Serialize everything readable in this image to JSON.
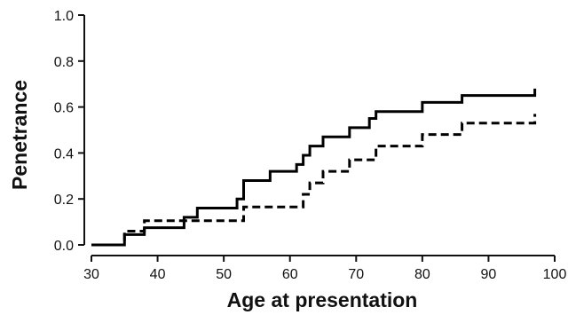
{
  "chart_data": {
    "type": "line",
    "xlabel": "Age at presentation",
    "ylabel": "Penetrance",
    "xlim": [
      30,
      100
    ],
    "ylim": [
      0.0,
      1.0
    ],
    "x_ticks": [
      "30",
      "40",
      "50",
      "60",
      "70",
      "80",
      "90",
      "100"
    ],
    "y_ticks": [
      "0.0",
      "0.2",
      "0.4",
      "0.6",
      "0.8",
      "1.0"
    ],
    "grid": false,
    "legend": "none",
    "series": [
      {
        "style": "solid",
        "color": "#000000",
        "steps": [
          [
            30,
            0.0
          ],
          [
            35,
            0.045
          ],
          [
            38,
            0.075
          ],
          [
            44,
            0.12
          ],
          [
            46,
            0.16
          ],
          [
            52,
            0.2
          ],
          [
            53,
            0.28
          ],
          [
            57,
            0.32
          ],
          [
            61,
            0.35
          ],
          [
            62,
            0.39
          ],
          [
            63,
            0.43
          ],
          [
            65,
            0.47
          ],
          [
            69,
            0.51
          ],
          [
            72,
            0.55
          ],
          [
            73,
            0.58
          ],
          [
            80,
            0.62
          ],
          [
            86,
            0.65
          ],
          [
            97,
            0.68
          ]
        ],
        "end_x": 97
      },
      {
        "style": "dashed",
        "color": "#000000",
        "steps": [
          [
            30,
            0.0
          ],
          [
            35,
            0.06
          ],
          [
            38,
            0.105
          ],
          [
            53,
            0.165
          ],
          [
            62,
            0.22
          ],
          [
            63,
            0.27
          ],
          [
            65,
            0.32
          ],
          [
            69,
            0.37
          ],
          [
            73,
            0.43
          ],
          [
            80,
            0.48
          ],
          [
            86,
            0.53
          ],
          [
            97,
            0.57
          ]
        ],
        "end_x": 97
      }
    ]
  }
}
